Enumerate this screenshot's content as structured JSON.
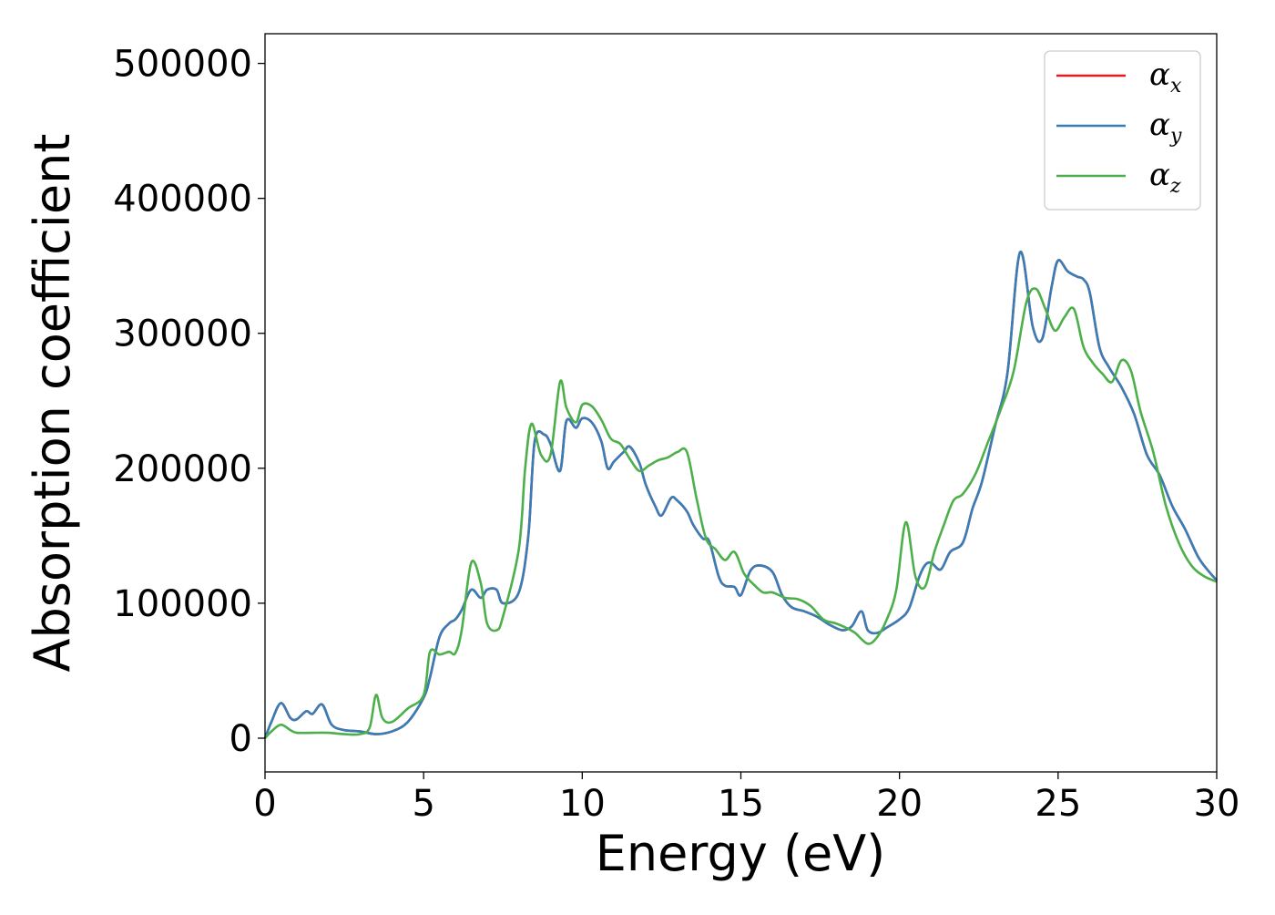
{
  "chart_data": {
    "type": "line",
    "title": "",
    "xlabel": "Energy (eV)",
    "ylabel": "Absorption coefficient",
    "xlim": [
      0,
      30
    ],
    "ylim": [
      -25000,
      522000
    ],
    "xticks": [
      0,
      5,
      10,
      15,
      20,
      25,
      30
    ],
    "yticks": [
      0,
      100000,
      200000,
      300000,
      400000,
      500000
    ],
    "grid": false,
    "legend_position": "top-right",
    "series": [
      {
        "name": "α",
        "subscript": "x",
        "color": "#e41a1c",
        "x": [
          0,
          0.2,
          0.5,
          0.8,
          1.0,
          1.3,
          1.5,
          1.8,
          2.1,
          2.5,
          3.0,
          3.5,
          4.0,
          4.5,
          5.0,
          5.2,
          5.5,
          5.8,
          6.0,
          6.2,
          6.5,
          6.8,
          7.0,
          7.3,
          7.5,
          8.0,
          8.3,
          8.5,
          8.8,
          9.0,
          9.3,
          9.5,
          9.8,
          10.0,
          10.3,
          10.6,
          10.8,
          11.0,
          11.3,
          11.5,
          11.8,
          12.0,
          12.3,
          12.5,
          12.8,
          13.0,
          13.3,
          13.5,
          13.8,
          14.0,
          14.3,
          14.5,
          14.8,
          15.0,
          15.3,
          15.6,
          16.0,
          16.3,
          16.6,
          17.0,
          17.4,
          17.8,
          18.2,
          18.5,
          18.8,
          19.0,
          19.3,
          19.6,
          20.0,
          20.3,
          20.6,
          20.8,
          21.0,
          21.3,
          21.6,
          22.0,
          22.3,
          22.6,
          23.0,
          23.4,
          23.8,
          24.2,
          24.5,
          24.8,
          25.0,
          25.3,
          25.6,
          25.8,
          26.0,
          26.3,
          26.6,
          27.0,
          27.4,
          27.8,
          28.2,
          28.6,
          29.0,
          29.4,
          29.7,
          30.0
        ],
        "values": [
          0,
          12000,
          26000,
          15000,
          14000,
          20000,
          18000,
          25000,
          10000,
          6000,
          5000,
          3000,
          5000,
          12000,
          30000,
          45000,
          75000,
          85000,
          88000,
          95000,
          110000,
          104000,
          110000,
          110000,
          100000,
          108000,
          150000,
          220000,
          225000,
          218000,
          198000,
          235000,
          230000,
          237000,
          234000,
          220000,
          200000,
          205000,
          212000,
          216000,
          204000,
          188000,
          172000,
          165000,
          178000,
          176000,
          168000,
          158000,
          148000,
          146000,
          120000,
          113000,
          112000,
          106000,
          124000,
          128000,
          123000,
          106000,
          97000,
          94000,
          90000,
          84000,
          80000,
          83000,
          94000,
          80000,
          78000,
          82000,
          88000,
          96000,
          118000,
          128000,
          130000,
          125000,
          138000,
          145000,
          170000,
          190000,
          230000,
          270000,
          360000,
          305000,
          296000,
          335000,
          354000,
          346000,
          342000,
          340000,
          330000,
          290000,
          275000,
          260000,
          240000,
          210000,
          195000,
          172000,
          155000,
          135000,
          125000,
          117000
        ]
      },
      {
        "name": "α",
        "subscript": "y",
        "color": "#377eb8",
        "x": [
          0,
          0.2,
          0.5,
          0.8,
          1.0,
          1.3,
          1.5,
          1.8,
          2.1,
          2.5,
          3.0,
          3.5,
          4.0,
          4.5,
          5.0,
          5.2,
          5.5,
          5.8,
          6.0,
          6.2,
          6.5,
          6.8,
          7.0,
          7.3,
          7.5,
          8.0,
          8.3,
          8.5,
          8.8,
          9.0,
          9.3,
          9.5,
          9.8,
          10.0,
          10.3,
          10.6,
          10.8,
          11.0,
          11.3,
          11.5,
          11.8,
          12.0,
          12.3,
          12.5,
          12.8,
          13.0,
          13.3,
          13.5,
          13.8,
          14.0,
          14.3,
          14.5,
          14.8,
          15.0,
          15.3,
          15.6,
          16.0,
          16.3,
          16.6,
          17.0,
          17.4,
          17.8,
          18.2,
          18.5,
          18.8,
          19.0,
          19.3,
          19.6,
          20.0,
          20.3,
          20.6,
          20.8,
          21.0,
          21.3,
          21.6,
          22.0,
          22.3,
          22.6,
          23.0,
          23.4,
          23.8,
          24.2,
          24.5,
          24.8,
          25.0,
          25.3,
          25.6,
          25.8,
          26.0,
          26.3,
          26.6,
          27.0,
          27.4,
          27.8,
          28.2,
          28.6,
          29.0,
          29.4,
          29.7,
          30.0
        ],
        "values": [
          0,
          12000,
          26000,
          15000,
          14000,
          20000,
          18000,
          25000,
          10000,
          6000,
          5000,
          3000,
          5000,
          12000,
          30000,
          45000,
          75000,
          85000,
          88000,
          95000,
          110000,
          104000,
          110000,
          110000,
          100000,
          108000,
          150000,
          220000,
          225000,
          218000,
          198000,
          235000,
          230000,
          237000,
          234000,
          220000,
          200000,
          205000,
          212000,
          216000,
          204000,
          188000,
          172000,
          165000,
          178000,
          176000,
          168000,
          158000,
          148000,
          146000,
          120000,
          113000,
          112000,
          106000,
          124000,
          128000,
          123000,
          106000,
          97000,
          94000,
          90000,
          84000,
          80000,
          83000,
          94000,
          80000,
          78000,
          82000,
          88000,
          96000,
          118000,
          128000,
          130000,
          125000,
          138000,
          145000,
          170000,
          190000,
          230000,
          270000,
          360000,
          305000,
          296000,
          335000,
          354000,
          346000,
          342000,
          340000,
          330000,
          290000,
          275000,
          260000,
          240000,
          210000,
          195000,
          172000,
          155000,
          135000,
          125000,
          117000
        ]
      },
      {
        "name": "α",
        "subscript": "z",
        "color": "#4daf4a",
        "x": [
          0,
          0.2,
          0.5,
          0.8,
          1.0,
          1.5,
          2.0,
          2.5,
          3.0,
          3.3,
          3.5,
          3.7,
          4.0,
          4.5,
          5.0,
          5.2,
          5.5,
          5.8,
          6.0,
          6.2,
          6.5,
          6.8,
          7.0,
          7.3,
          7.5,
          8.0,
          8.2,
          8.4,
          8.7,
          9.0,
          9.3,
          9.5,
          9.8,
          10.0,
          10.3,
          10.6,
          10.9,
          11.2,
          11.5,
          11.8,
          12.1,
          12.4,
          12.7,
          13.0,
          13.3,
          13.6,
          13.9,
          14.2,
          14.5,
          14.8,
          15.1,
          15.4,
          15.7,
          16.0,
          16.4,
          16.8,
          17.2,
          17.6,
          18.0,
          18.3,
          18.6,
          19.0,
          19.3,
          19.6,
          19.9,
          20.2,
          20.5,
          20.8,
          21.1,
          21.4,
          21.7,
          22.0,
          22.4,
          22.8,
          23.2,
          23.6,
          24.0,
          24.3,
          24.6,
          24.9,
          25.2,
          25.5,
          25.8,
          26.1,
          26.4,
          26.7,
          27.0,
          27.3,
          27.6,
          28.0,
          28.4,
          28.8,
          29.2,
          29.6,
          30.0
        ],
        "values": [
          0,
          5000,
          10000,
          6000,
          4000,
          4000,
          4000,
          3000,
          3000,
          8000,
          32000,
          15000,
          12000,
          22000,
          32000,
          64000,
          62000,
          64000,
          63000,
          80000,
          130000,
          115000,
          85000,
          80000,
          90000,
          140000,
          200000,
          233000,
          210000,
          210000,
          264000,
          245000,
          234000,
          247000,
          246000,
          236000,
          222000,
          218000,
          207000,
          198000,
          202000,
          206000,
          208000,
          212000,
          212000,
          178000,
          148000,
          140000,
          132000,
          138000,
          122000,
          114000,
          108000,
          108000,
          104000,
          103000,
          98000,
          88000,
          85000,
          82000,
          78000,
          70000,
          75000,
          88000,
          110000,
          160000,
          120000,
          112000,
          138000,
          158000,
          176000,
          181000,
          196000,
          220000,
          244000,
          272000,
          323000,
          333000,
          318000,
          302000,
          312000,
          318000,
          290000,
          278000,
          270000,
          264000,
          280000,
          272000,
          242000,
          212000,
          172000,
          145000,
          128000,
          120000,
          116000
        ]
      }
    ]
  }
}
